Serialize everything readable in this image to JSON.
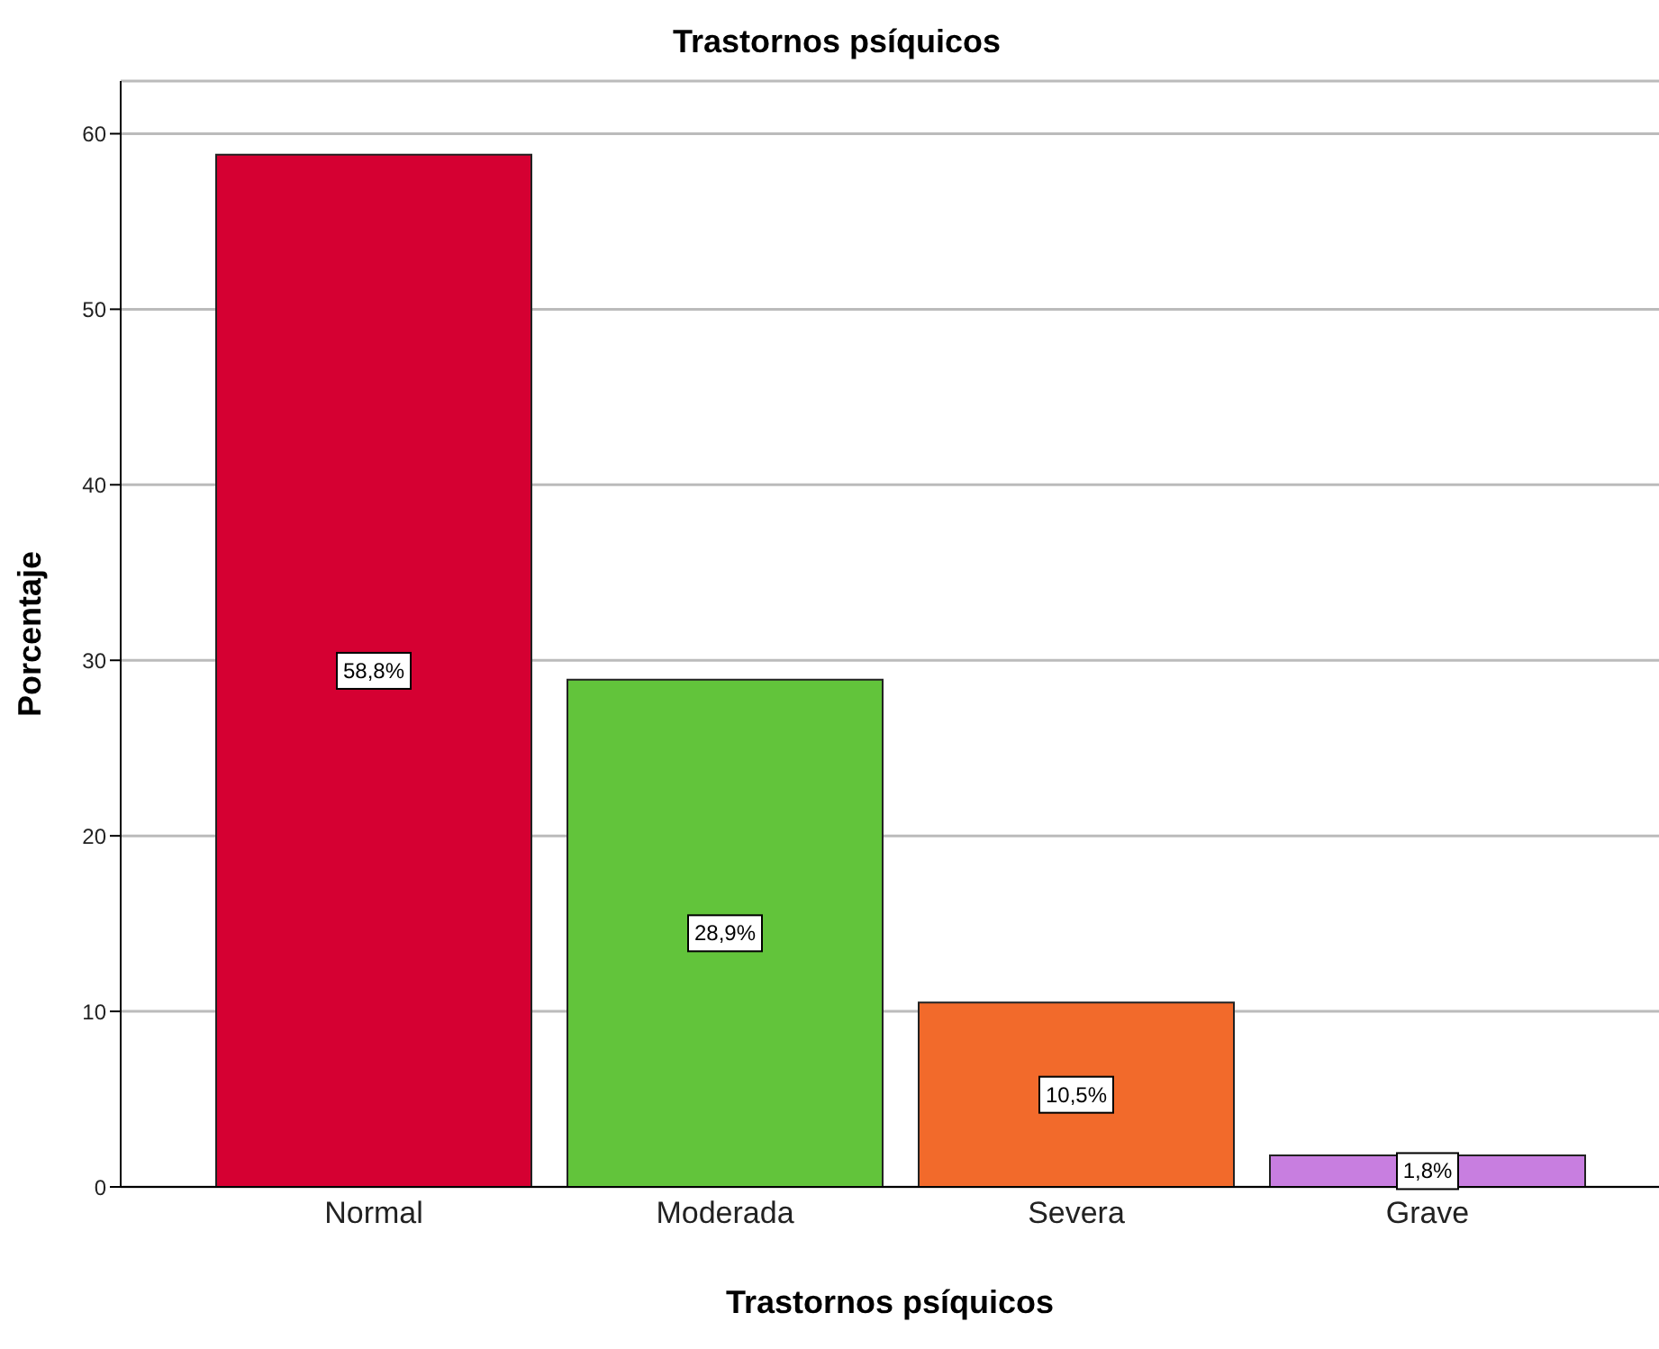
{
  "chart_data": {
    "type": "bar",
    "title": "Trastornos psíquicos",
    "xlabel": "Trastornos psíquicos",
    "ylabel": "Porcentaje",
    "categories": [
      "Normal",
      "Moderada",
      "Severa",
      "Grave"
    ],
    "values": [
      58.8,
      28.9,
      10.5,
      1.8
    ],
    "colors": [
      "#d50032",
      "#62c43b",
      "#f26a2b",
      "#c87ee0"
    ],
    "value_labels": [
      "58,8%",
      "28,9%",
      "10,5%",
      "1,8%"
    ],
    "ylim": [
      0,
      63
    ],
    "yticks": [
      0,
      10,
      20,
      30,
      40,
      50,
      60
    ],
    "grid": "y"
  }
}
